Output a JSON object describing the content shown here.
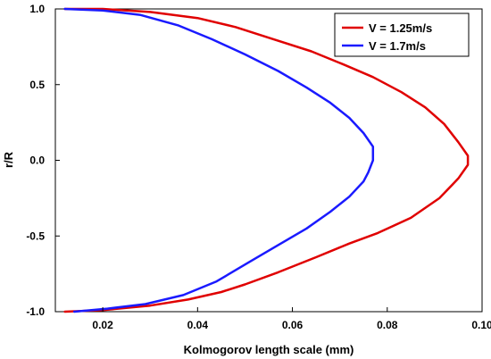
{
  "chart_data": {
    "type": "line",
    "title": "",
    "xlabel": "Kolmogorov length scale (mm)",
    "ylabel": "r/R",
    "xlim": [
      0.01,
      0.1
    ],
    "ylim": [
      -1.0,
      1.0
    ],
    "x_ticks": [
      "0.02",
      "0.04",
      "0.06",
      "0.08",
      "0.10"
    ],
    "y_ticks": [
      "1.0",
      "0.5",
      "0.0",
      "-0.5",
      "-1.0"
    ],
    "grid": false,
    "legend_position": "top-right",
    "series": [
      {
        "name": "V = 1.25m/s",
        "color": "#e00000",
        "points": [
          [
            0.012,
            1.0
          ],
          [
            0.02,
            1.0
          ],
          [
            0.03,
            0.98
          ],
          [
            0.04,
            0.94
          ],
          [
            0.048,
            0.88
          ],
          [
            0.056,
            0.8
          ],
          [
            0.064,
            0.72
          ],
          [
            0.071,
            0.63
          ],
          [
            0.077,
            0.55
          ],
          [
            0.083,
            0.45
          ],
          [
            0.088,
            0.35
          ],
          [
            0.092,
            0.24
          ],
          [
            0.095,
            0.12
          ],
          [
            0.097,
            0.03
          ],
          [
            0.097,
            -0.03
          ],
          [
            0.095,
            -0.12
          ],
          [
            0.091,
            -0.25
          ],
          [
            0.085,
            -0.38
          ],
          [
            0.078,
            -0.48
          ],
          [
            0.072,
            -0.55
          ],
          [
            0.065,
            -0.64
          ],
          [
            0.057,
            -0.74
          ],
          [
            0.05,
            -0.82
          ],
          [
            0.045,
            -0.87
          ],
          [
            0.038,
            -0.92
          ],
          [
            0.03,
            -0.96
          ],
          [
            0.02,
            -0.99
          ],
          [
            0.012,
            -1.0
          ]
        ]
      },
      {
        "name": "V = 1.7m/s",
        "color": "#1a1aff",
        "points": [
          [
            0.012,
            1.0
          ],
          [
            0.02,
            0.99
          ],
          [
            0.028,
            0.96
          ],
          [
            0.036,
            0.89
          ],
          [
            0.043,
            0.8
          ],
          [
            0.05,
            0.7
          ],
          [
            0.057,
            0.59
          ],
          [
            0.063,
            0.48
          ],
          [
            0.068,
            0.38
          ],
          [
            0.072,
            0.28
          ],
          [
            0.075,
            0.18
          ],
          [
            0.077,
            0.09
          ],
          [
            0.077,
            0.0
          ],
          [
            0.076,
            -0.08
          ],
          [
            0.075,
            -0.14
          ],
          [
            0.072,
            -0.24
          ],
          [
            0.068,
            -0.34
          ],
          [
            0.063,
            -0.45
          ],
          [
            0.057,
            -0.56
          ],
          [
            0.051,
            -0.67
          ],
          [
            0.044,
            -0.8
          ],
          [
            0.037,
            -0.89
          ],
          [
            0.029,
            -0.95
          ],
          [
            0.021,
            -0.98
          ],
          [
            0.014,
            -1.0
          ]
        ]
      }
    ]
  }
}
